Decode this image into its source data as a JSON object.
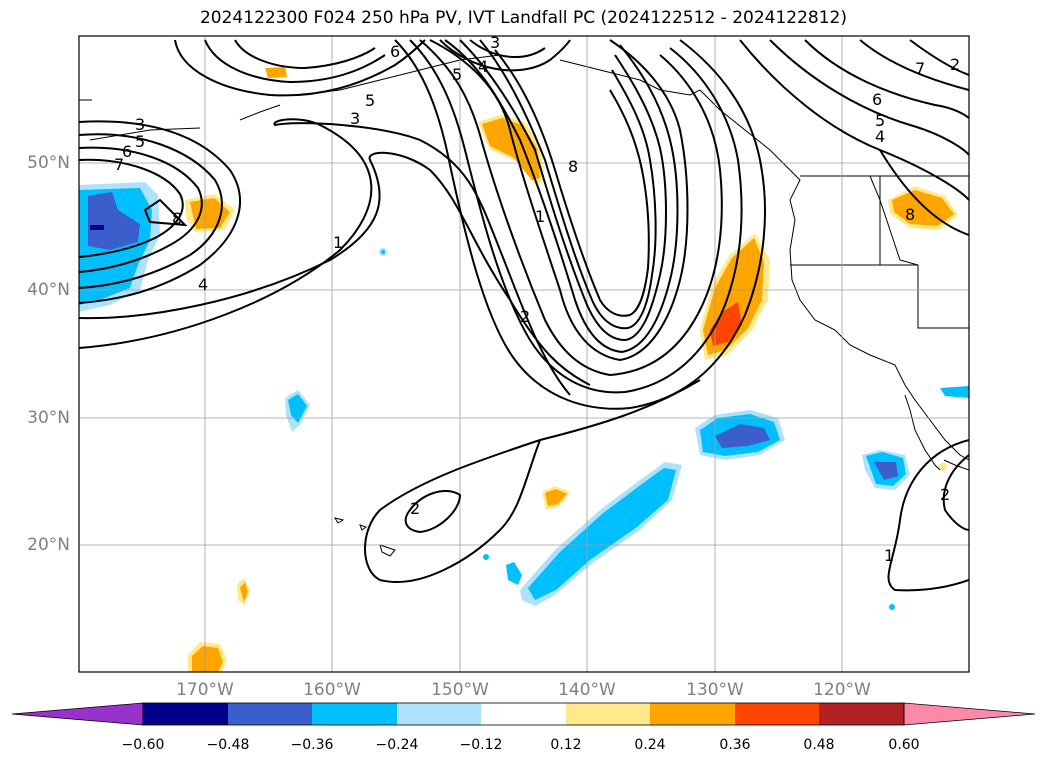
{
  "title": "2024122300 F024 250 hPa PV, IVT Landfall PC (2024122512 - 2024122812)",
  "map": {
    "projection": "PlateCarree",
    "lon_range": [
      -180,
      -110
    ],
    "lat_range": [
      10,
      60
    ],
    "lat_labels": [
      "20°N",
      "30°N",
      "40°N",
      "50°N"
    ],
    "lon_labels": [
      "170°W",
      "160°W",
      "150°W",
      "140°W",
      "130°W",
      "120°W"
    ],
    "pv_contour_labels": [
      "3",
      "5",
      "6",
      "7",
      "8",
      "4",
      "1",
      "2",
      "6",
      "5",
      "4",
      "3",
      "5",
      "3",
      "8",
      "1",
      "2",
      "2",
      "7",
      "6",
      "5",
      "4",
      "8",
      "1",
      "2"
    ]
  },
  "colorbar": {
    "ticks": [
      "−0.60",
      "−0.48",
      "−0.36",
      "−0.24",
      "−0.12",
      "0.12",
      "0.24",
      "0.36",
      "0.48",
      "0.60"
    ],
    "colors": [
      "#9932CC",
      "#00008B",
      "#3A5FCD",
      "#00BFFF",
      "#ADE2FB",
      "#FFFFFF",
      "#FFE98A",
      "#FFA500",
      "#FF4500",
      "#B22222",
      "#FF88A8"
    ]
  }
}
